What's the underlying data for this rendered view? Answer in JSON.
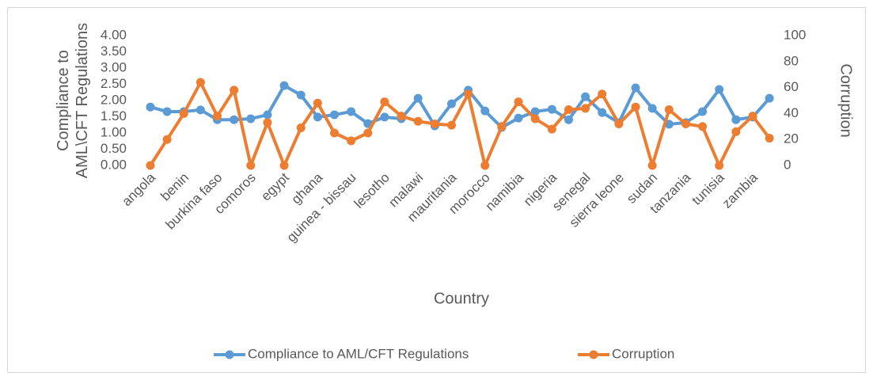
{
  "chart_data": {
    "type": "line",
    "x_label": "Country",
    "y_label": "Compliance to AML\\CFT Regulations",
    "y2_label": "Corruption",
    "categories": [
      "angola",
      null,
      "benin",
      null,
      "burkina faso",
      null,
      "comoros",
      null,
      "egypt",
      null,
      "ghana",
      null,
      "guinea - bissau",
      null,
      "lesotho",
      null,
      "malawi",
      null,
      "mauritania",
      null,
      "morocco",
      null,
      "namibia",
      null,
      "nigeria",
      null,
      "senegal",
      null,
      "sierra leone",
      null,
      "sudan",
      null,
      "tanzania",
      null,
      "tunisia",
      null,
      "zambia",
      null
    ],
    "series": [
      {
        "name": "Compliance to AML/CFT Regulations",
        "color": "#5b9bd5",
        "axis": "y",
        "values": [
          1.8,
          1.66,
          1.66,
          1.71,
          1.41,
          1.41,
          1.44,
          1.56,
          2.46,
          2.17,
          1.49,
          1.56,
          1.66,
          1.29,
          1.49,
          1.44,
          2.07,
          1.22,
          1.9,
          2.32,
          1.68,
          1.17,
          1.46,
          1.66,
          1.73,
          1.41,
          2.12,
          1.63,
          1.32,
          2.39,
          1.76,
          1.27,
          1.32,
          1.66,
          2.34,
          1.41,
          1.49,
          2.07
        ]
      },
      {
        "name": "Corruption",
        "color": "#ed7d31",
        "axis": "y2",
        "values": [
          0,
          20,
          40,
          64,
          38,
          58,
          0,
          33,
          0,
          29,
          48,
          25,
          19,
          25,
          49,
          38,
          34,
          32,
          31,
          55,
          0,
          30,
          49,
          36,
          28,
          43,
          44,
          55,
          32,
          45,
          0,
          43,
          32,
          30,
          0,
          26,
          38,
          21
        ]
      }
    ],
    "ylim": [
      0,
      4
    ],
    "yticks": [
      {
        "value": 0,
        "label": "0.00"
      },
      {
        "value": 0.5,
        "label": "0.50"
      },
      {
        "value": 1,
        "label": "1.00"
      },
      {
        "value": 1.5,
        "label": "1.50"
      },
      {
        "value": 2,
        "label": "2.00"
      },
      {
        "value": 2.5,
        "label": "2.50"
      },
      {
        "value": 3,
        "label": "3.00"
      },
      {
        "value": 3.5,
        "label": "3.50"
      },
      {
        "value": 4,
        "label": "4.00"
      }
    ],
    "y2lim": [
      0,
      100
    ],
    "y2ticks": [
      0,
      20,
      40,
      60,
      80,
      100
    ],
    "legend": "bottom"
  }
}
